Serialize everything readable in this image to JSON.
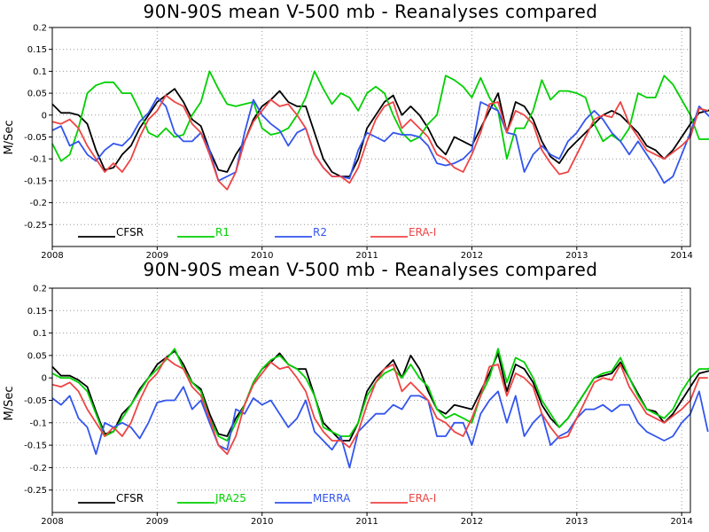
{
  "chart_data": [
    {
      "type": "line",
      "title": "90N-90S mean V-500 mb - Reanalyses compared",
      "ylabel": "M/Sec",
      "xlim": [
        2008.0,
        2014.083
      ],
      "ylim": [
        -0.3,
        0.2
      ],
      "yticks": [
        0.2,
        0.15,
        0.1,
        0.05,
        0,
        -0.05,
        -0.1,
        -0.15,
        -0.2,
        -0.25
      ],
      "ytick_labels": [
        "0.2",
        "0.15",
        "0.1",
        "0.05",
        "0",
        "-0.05",
        "-0.1",
        "-0.15",
        "-0.2",
        "-0.25"
      ],
      "xticks": [
        2008,
        2009,
        2010,
        2011,
        2012,
        2013,
        2014
      ],
      "xtick_labels": [
        "2008",
        "2009",
        "2010",
        "2011",
        "2012",
        "2013",
        "2014"
      ],
      "grid": true,
      "legend_position": "bottom",
      "x_start": 2008.0,
      "x_step": 0.083333,
      "series": [
        {
          "name": "CFSR",
          "color": "#000000",
          "values": [
            0.025,
            0.005,
            0.005,
            0.0,
            -0.02,
            -0.08,
            -0.125,
            -0.12,
            -0.09,
            -0.07,
            -0.03,
            0.0,
            0.03,
            0.045,
            0.06,
            0.03,
            -0.01,
            -0.025,
            -0.08,
            -0.125,
            -0.13,
            -0.09,
            -0.06,
            -0.01,
            0.02,
            0.035,
            0.055,
            0.03,
            0.02,
            0.02,
            -0.04,
            -0.1,
            -0.13,
            -0.14,
            -0.14,
            -0.1,
            -0.03,
            0.0,
            0.03,
            0.045,
            0.0,
            0.02,
            0.0,
            -0.03,
            -0.07,
            -0.09,
            -0.05,
            -0.06,
            -0.07,
            -0.03,
            0.01,
            0.05,
            -0.04,
            0.03,
            0.02,
            -0.01,
            -0.06,
            -0.095,
            -0.11,
            -0.08,
            -0.06,
            -0.04,
            -0.02,
            0.0,
            0.01,
            0.0,
            -0.02,
            -0.04,
            -0.07,
            -0.08,
            -0.1,
            -0.08,
            -0.05,
            -0.02,
            0.005,
            0.01,
            0.02,
            0.005,
            0.01
          ]
        },
        {
          "name": "R1",
          "color": "#00d000",
          "values": [
            -0.065,
            -0.105,
            -0.09,
            -0.03,
            0.05,
            0.068,
            0.075,
            0.075,
            0.05,
            0.05,
            0.01,
            -0.04,
            -0.05,
            -0.03,
            -0.05,
            -0.045,
            0.0,
            0.03,
            0.1,
            0.06,
            0.025,
            0.02,
            0.025,
            0.03,
            -0.03,
            -0.045,
            -0.04,
            -0.03,
            0.0,
            0.04,
            0.1,
            0.06,
            0.025,
            0.05,
            0.04,
            0.01,
            0.05,
            0.065,
            0.05,
            0.0,
            -0.04,
            -0.06,
            -0.05,
            -0.02,
            0.0,
            0.09,
            0.08,
            0.065,
            0.04,
            0.085,
            0.04,
            0.01,
            -0.1,
            -0.03,
            -0.03,
            0.01,
            0.08,
            0.035,
            0.055,
            0.055,
            0.05,
            0.04,
            -0.02,
            -0.06,
            -0.045,
            -0.06,
            -0.03,
            0.05,
            0.04,
            0.04,
            0.09,
            0.07,
            0.035,
            0.0,
            -0.055,
            -0.055,
            -0.05
          ]
        },
        {
          "name": "R2",
          "color": "#3355ee",
          "values": [
            -0.035,
            -0.025,
            -0.07,
            -0.06,
            -0.09,
            -0.105,
            -0.08,
            -0.065,
            -0.07,
            -0.05,
            -0.015,
            0.005,
            0.04,
            0.02,
            -0.04,
            -0.06,
            -0.06,
            -0.04,
            -0.08,
            -0.15,
            -0.14,
            -0.13,
            -0.04,
            0.035,
            0.0,
            -0.02,
            -0.035,
            -0.07,
            -0.04,
            -0.03,
            -0.09,
            -0.12,
            -0.14,
            -0.14,
            -0.145,
            -0.08,
            -0.04,
            -0.05,
            -0.06,
            -0.04,
            -0.045,
            -0.045,
            -0.05,
            -0.07,
            -0.11,
            -0.115,
            -0.11,
            -0.1,
            -0.08,
            0.03,
            0.02,
            0.01,
            -0.04,
            -0.045,
            -0.13,
            -0.09,
            -0.07,
            -0.09,
            -0.1,
            -0.06,
            -0.04,
            -0.01,
            0.01,
            -0.01,
            -0.04,
            -0.06,
            -0.09,
            -0.06,
            -0.09,
            -0.12,
            -0.155,
            -0.14,
            -0.09,
            -0.04,
            0.02,
            0.0,
            -0.02,
            0.005
          ]
        },
        {
          "name": "ERA-I",
          "color": "#ee4444",
          "values": [
            -0.015,
            -0.02,
            -0.01,
            -0.03,
            -0.07,
            -0.1,
            -0.13,
            -0.11,
            -0.13,
            -0.1,
            -0.05,
            -0.01,
            0.01,
            0.045,
            0.03,
            0.02,
            -0.02,
            -0.04,
            -0.09,
            -0.15,
            -0.17,
            -0.13,
            -0.06,
            -0.015,
            0.01,
            0.035,
            0.02,
            0.025,
            0.0,
            -0.03,
            -0.09,
            -0.12,
            -0.14,
            -0.14,
            -0.155,
            -0.12,
            -0.06,
            -0.01,
            0.02,
            0.03,
            -0.03,
            -0.01,
            -0.03,
            -0.05,
            -0.09,
            -0.1,
            -0.12,
            -0.13,
            -0.09,
            -0.04,
            0.025,
            0.03,
            -0.04,
            0.01,
            0.0,
            -0.02,
            -0.08,
            -0.11,
            -0.135,
            -0.13,
            -0.09,
            -0.05,
            -0.01,
            0.0,
            -0.005,
            0.03,
            -0.02,
            -0.05,
            -0.08,
            -0.09,
            -0.1,
            -0.085,
            -0.07,
            -0.05,
            0.015,
            0.01
          ]
        }
      ]
    },
    {
      "type": "line",
      "title": "90N-90S mean V-500 mb - Reanalyses compared",
      "ylabel": "M/Sec",
      "xlim": [
        2008.0,
        2014.083
      ],
      "ylim": [
        -0.3,
        0.2
      ],
      "yticks": [
        0.2,
        0.15,
        0.1,
        0.05,
        0,
        -0.05,
        -0.1,
        -0.15,
        -0.2,
        -0.25
      ],
      "ytick_labels": [
        "0.2",
        "0.15",
        "0.1",
        "0.05",
        "0",
        "-0.05",
        "-0.1",
        "-0.15",
        "-0.2",
        "-0.25"
      ],
      "xticks": [
        2008,
        2009,
        2010,
        2011,
        2012,
        2013,
        2014
      ],
      "xtick_labels": [
        "2008",
        "2009",
        "2010",
        "2011",
        "2012",
        "2013",
        "2014"
      ],
      "grid": true,
      "legend_position": "bottom",
      "x_start": 2008.0,
      "x_step": 0.083333,
      "series": [
        {
          "name": "CFSR",
          "color": "#000000",
          "values": [
            0.025,
            0.005,
            0.005,
            -0.005,
            -0.02,
            -0.075,
            -0.125,
            -0.12,
            -0.08,
            -0.06,
            -0.025,
            0.0,
            0.03,
            0.045,
            0.06,
            0.03,
            -0.01,
            -0.025,
            -0.08,
            -0.125,
            -0.13,
            -0.09,
            -0.06,
            -0.01,
            0.02,
            0.035,
            0.055,
            0.03,
            0.02,
            0.02,
            -0.04,
            -0.1,
            -0.12,
            -0.14,
            -0.14,
            -0.1,
            -0.03,
            0.0,
            0.02,
            0.04,
            0.0,
            0.05,
            0.02,
            -0.03,
            -0.07,
            -0.08,
            -0.06,
            -0.065,
            -0.07,
            -0.03,
            0.01,
            0.055,
            -0.03,
            0.03,
            0.02,
            -0.01,
            -0.06,
            -0.09,
            -0.11,
            -0.09,
            -0.06,
            -0.03,
            0.0,
            0.005,
            0.01,
            0.035,
            0.0,
            -0.035,
            -0.07,
            -0.075,
            -0.1,
            -0.08,
            -0.05,
            -0.02,
            0.01,
            0.015,
            0.02,
            0.0
          ]
        },
        {
          "name": "JRA25",
          "color": "#00d000",
          "values": [
            0.01,
            0.0,
            0.0,
            -0.01,
            -0.03,
            -0.08,
            -0.13,
            -0.12,
            -0.09,
            -0.06,
            -0.03,
            0.0,
            0.02,
            0.04,
            0.065,
            0.02,
            -0.01,
            -0.03,
            -0.09,
            -0.13,
            -0.14,
            -0.1,
            -0.06,
            -0.01,
            0.02,
            0.04,
            0.05,
            0.03,
            0.02,
            0.0,
            -0.04,
            -0.11,
            -0.12,
            -0.13,
            -0.13,
            -0.1,
            -0.04,
            -0.01,
            0.01,
            0.02,
            0.0,
            0.03,
            0.0,
            -0.02,
            -0.07,
            -0.09,
            -0.08,
            -0.09,
            -0.1,
            -0.04,
            0.0,
            0.065,
            -0.01,
            0.045,
            0.035,
            0.0,
            -0.05,
            -0.08,
            -0.11,
            -0.09,
            -0.06,
            -0.03,
            0.0,
            0.01,
            0.015,
            0.045,
            0.0,
            -0.04,
            -0.07,
            -0.08,
            -0.09,
            -0.07,
            -0.03,
            0.0,
            0.02,
            0.02,
            0.03,
            0.015
          ]
        },
        {
          "name": "MERRA",
          "color": "#3355ee",
          "values": [
            -0.045,
            -0.06,
            -0.04,
            -0.09,
            -0.11,
            -0.17,
            -0.1,
            -0.11,
            -0.1,
            -0.11,
            -0.135,
            -0.1,
            -0.055,
            -0.05,
            -0.05,
            -0.02,
            -0.07,
            -0.05,
            -0.1,
            -0.15,
            -0.16,
            -0.07,
            -0.08,
            -0.045,
            -0.06,
            -0.05,
            -0.08,
            -0.11,
            -0.09,
            -0.05,
            -0.12,
            -0.14,
            -0.16,
            -0.13,
            -0.2,
            -0.12,
            -0.1,
            -0.08,
            -0.08,
            -0.06,
            -0.07,
            -0.04,
            -0.04,
            -0.05,
            -0.13,
            -0.13,
            -0.1,
            -0.1,
            -0.15,
            -0.08,
            -0.05,
            -0.03,
            -0.1,
            -0.04,
            -0.13,
            -0.1,
            -0.08,
            -0.15,
            -0.13,
            -0.12,
            -0.09,
            -0.07,
            -0.07,
            -0.06,
            -0.075,
            -0.06,
            -0.06,
            -0.1,
            -0.12,
            -0.13,
            -0.14,
            -0.13,
            -0.1,
            -0.08,
            -0.03,
            -0.12
          ]
        },
        {
          "name": "ERA-I",
          "color": "#ee4444",
          "values": [
            -0.015,
            -0.02,
            -0.01,
            -0.03,
            -0.07,
            -0.1,
            -0.13,
            -0.11,
            -0.13,
            -0.1,
            -0.05,
            -0.01,
            0.01,
            0.045,
            0.03,
            0.02,
            -0.02,
            -0.04,
            -0.09,
            -0.15,
            -0.17,
            -0.13,
            -0.06,
            -0.015,
            0.01,
            0.035,
            0.02,
            0.025,
            0.0,
            -0.03,
            -0.09,
            -0.12,
            -0.14,
            -0.14,
            -0.155,
            -0.12,
            -0.06,
            -0.01,
            0.02,
            0.03,
            -0.03,
            -0.01,
            -0.03,
            -0.05,
            -0.09,
            -0.1,
            -0.12,
            -0.13,
            -0.09,
            -0.04,
            0.025,
            0.03,
            -0.04,
            0.01,
            0.0,
            -0.02,
            -0.08,
            -0.11,
            -0.135,
            -0.13,
            -0.09,
            -0.05,
            -0.01,
            0.0,
            -0.005,
            0.03,
            -0.02,
            -0.05,
            -0.08,
            -0.09,
            -0.1,
            -0.085,
            -0.07,
            -0.05,
            0.0,
            0.0
          ]
        }
      ]
    }
  ]
}
